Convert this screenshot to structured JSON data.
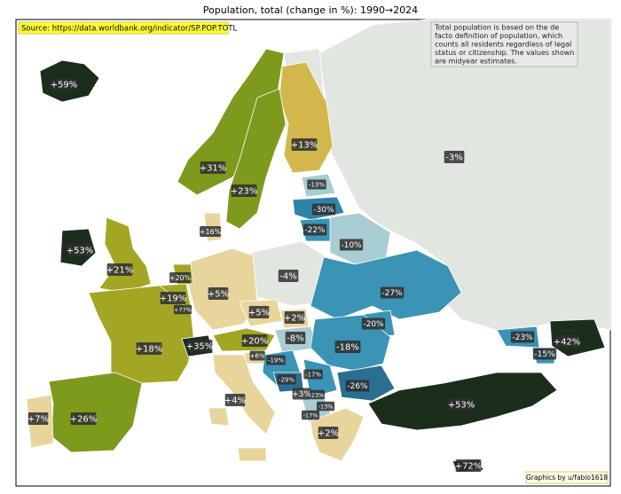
{
  "title": "Population, total (change in %):  1990→2024",
  "source": "Source: https://data.worldbank.org/indicator/SP.POP.TOTL",
  "note": [
    "Total population is based on the de",
    "facto definition of population, which",
    "counts all residents regardless of legal",
    "status or citizenship. The values shown",
    "are midyear estimates."
  ],
  "credit": "Graphics by u/fabio1618",
  "regions": [
    {
      "label": "+59%"
    },
    {
      "label": "+53%"
    },
    {
      "label": "+21%"
    },
    {
      "label": "+31%"
    },
    {
      "label": "+23%"
    },
    {
      "label": "+13%"
    },
    {
      "label": "-3%"
    },
    {
      "label": "-13%"
    },
    {
      "label": "-30%"
    },
    {
      "label": "-22%"
    },
    {
      "label": "-10%"
    },
    {
      "label": "+16%"
    },
    {
      "label": "+20%"
    },
    {
      "label": "+19%"
    },
    {
      "label": "+77%"
    },
    {
      "label": "+5%"
    },
    {
      "label": "-4%"
    },
    {
      "label": "-27%"
    },
    {
      "label": "+18%"
    },
    {
      "label": "+35%"
    },
    {
      "label": "+5%"
    },
    {
      "label": "+2%"
    },
    {
      "label": "+20%"
    },
    {
      "label": "-8%"
    },
    {
      "label": "-20%"
    },
    {
      "label": "-18%"
    },
    {
      "label": "+6%"
    },
    {
      "label": "-19%"
    },
    {
      "label": "-29%"
    },
    {
      "label": "-17%"
    },
    {
      "label": "-26%"
    },
    {
      "label": "+3%"
    },
    {
      "label": "23%"
    },
    {
      "label": "-13%"
    },
    {
      "label": "-17%"
    },
    {
      "label": "+4%"
    },
    {
      "label": "+2%"
    },
    {
      "label": "+53%"
    },
    {
      "label": "-23%"
    },
    {
      "label": "-15%"
    },
    {
      "label": "+42%"
    },
    {
      "label": "+26%"
    },
    {
      "label": "+7%"
    },
    {
      "label": "+72%"
    }
  ]
}
